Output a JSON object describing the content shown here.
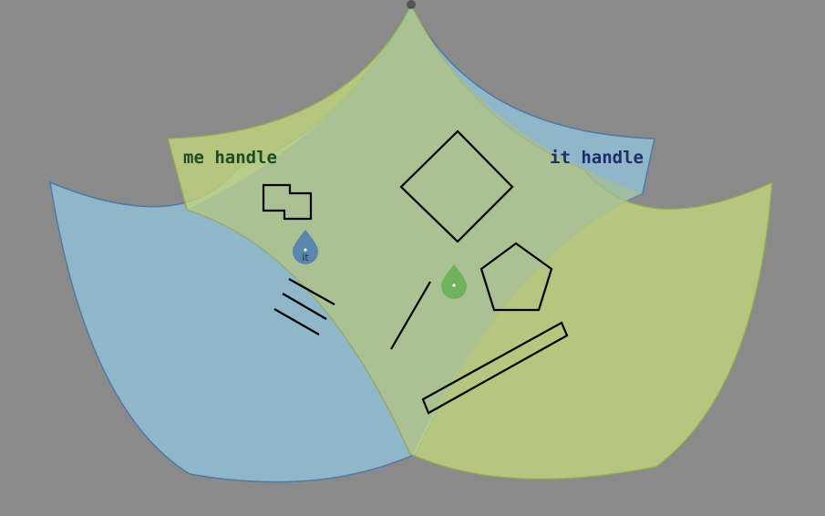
{
  "canvas": {
    "background_color": "#8a8a8a"
  },
  "handles": {
    "me": {
      "label": "me handle",
      "label_color": "#1e4a24",
      "fill_color": "#c1d57a",
      "edge_color": "#90a85a"
    },
    "it": {
      "label": "it handle",
      "label_color": "#1c2f6b",
      "fill_color": "#8fbdd4",
      "edge_color": "#4f79a6"
    }
  },
  "pins": {
    "it_pin": {
      "label": "it",
      "color": "#5b86ad"
    },
    "me_pin": {
      "label": "",
      "color": "#6fb35f"
    }
  },
  "shapes": {
    "items": [
      "diamond",
      "pentagon",
      "notched-rectangle",
      "parallel-lines",
      "diagonal-line",
      "long-bar"
    ],
    "stroke_color": "#000000"
  }
}
